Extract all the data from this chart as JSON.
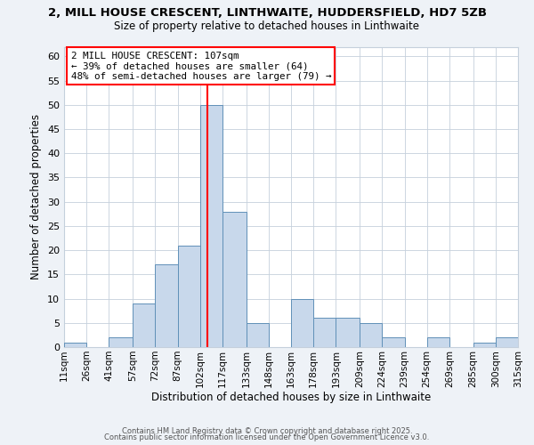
{
  "title1": "2, MILL HOUSE CRESCENT, LINTHWAITE, HUDDERSFIELD, HD7 5ZB",
  "title2": "Size of property relative to detached houses in Linthwaite",
  "xlabel": "Distribution of detached houses by size in Linthwaite",
  "ylabel": "Number of detached properties",
  "bin_edges": [
    11,
    26,
    41,
    57,
    72,
    87,
    102,
    117,
    133,
    148,
    163,
    178,
    193,
    209,
    224,
    239,
    254,
    269,
    285,
    300,
    315
  ],
  "bin_labels": [
    "11sqm",
    "26sqm",
    "41sqm",
    "57sqm",
    "72sqm",
    "87sqm",
    "102sqm",
    "117sqm",
    "133sqm",
    "148sqm",
    "163sqm",
    "178sqm",
    "193sqm",
    "209sqm",
    "224sqm",
    "239sqm",
    "254sqm",
    "269sqm",
    "285sqm",
    "300sqm",
    "315sqm"
  ],
  "counts": [
    1,
    0,
    2,
    9,
    17,
    21,
    50,
    28,
    5,
    0,
    10,
    6,
    6,
    5,
    2,
    0,
    2,
    0,
    1,
    2
  ],
  "bar_facecolor": "#c8d8eb",
  "bar_edgecolor": "#6090b8",
  "vline_x": 107,
  "vline_color": "red",
  "annotation_title": "2 MILL HOUSE CRESCENT: 107sqm",
  "annotation_line1": "← 39% of detached houses are smaller (64)",
  "annotation_line2": "48% of semi-detached houses are larger (79) →",
  "annotation_box_edgecolor": "red",
  "ylim": [
    0,
    62
  ],
  "yticks": [
    0,
    5,
    10,
    15,
    20,
    25,
    30,
    35,
    40,
    45,
    50,
    55,
    60
  ],
  "footer1": "Contains HM Land Registry data © Crown copyright and database right 2025.",
  "footer2": "Contains public sector information licensed under the Open Government Licence v3.0.",
  "bg_color": "#eef2f7",
  "plot_bg_color": "#ffffff",
  "grid_color": "#c5d0dc"
}
